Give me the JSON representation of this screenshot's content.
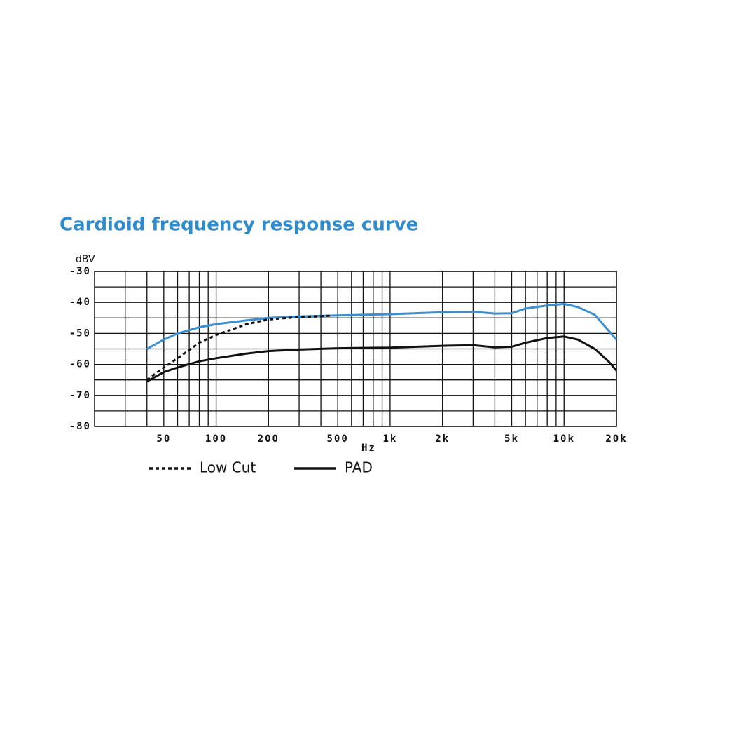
{
  "chart_data": {
    "type": "line",
    "title": "Cardioid frequency response curve",
    "y_label": "dBV",
    "x_label": "Hz",
    "x_scale": "log",
    "xlim": [
      20,
      20000
    ],
    "ylim": [
      -80,
      -30
    ],
    "xticks": [
      50,
      100,
      200,
      500,
      {
        "value": 1000,
        "label": "1k"
      },
      {
        "value": 2000,
        "label": "2k"
      },
      {
        "value": 5000,
        "label": "5k"
      },
      {
        "value": 10000,
        "label": "10k"
      },
      {
        "value": 20000,
        "label": "20k"
      }
    ],
    "x_minor_gridlines": [
      30,
      40,
      60,
      70,
      80,
      90,
      300,
      400,
      600,
      700,
      800,
      900,
      3000,
      4000,
      6000,
      7000,
      8000,
      9000
    ],
    "yticks": [
      -30,
      -40,
      -50,
      -60,
      -70,
      -80
    ],
    "y_minor_gridlines": [
      -35,
      -45,
      -55,
      -65,
      -75
    ],
    "grid": true,
    "series": [
      {
        "color": "#3b8fd1",
        "style": "solid",
        "x": [
          40,
          50,
          60,
          80,
          100,
          150,
          200,
          300,
          500,
          1000,
          2000,
          3000,
          4000,
          5000,
          6000,
          8000,
          10000,
          12000,
          15000,
          20000
        ],
        "values": [
          -55,
          -52,
          -50,
          -48,
          -47,
          -45.8,
          -45,
          -44.5,
          -44.2,
          -43.8,
          -43.2,
          -43,
          -43.6,
          -43.5,
          -42,
          -41,
          -40.5,
          -41.5,
          -44,
          -52
        ]
      },
      {
        "name": "Low Cut",
        "color": "#111111",
        "style": "dotted",
        "x": [
          40,
          50,
          60,
          80,
          100,
          150,
          200,
          300,
          450
        ],
        "values": [
          -65,
          -61,
          -58,
          -53,
          -50.5,
          -47,
          -45.5,
          -44.7,
          -44.3
        ]
      },
      {
        "name": "PAD",
        "color": "#111111",
        "style": "solid",
        "x": [
          40,
          50,
          60,
          80,
          100,
          150,
          200,
          300,
          500,
          1000,
          2000,
          3000,
          4000,
          5000,
          6000,
          8000,
          10000,
          12000,
          15000,
          18000,
          20000
        ],
        "values": [
          -65.5,
          -62.5,
          -61,
          -59,
          -58,
          -56.5,
          -55.7,
          -55.2,
          -54.8,
          -54.6,
          -54,
          -53.8,
          -54.5,
          -54.3,
          -53,
          -51.5,
          -51,
          -52,
          -55,
          -59,
          -62
        ]
      }
    ]
  }
}
